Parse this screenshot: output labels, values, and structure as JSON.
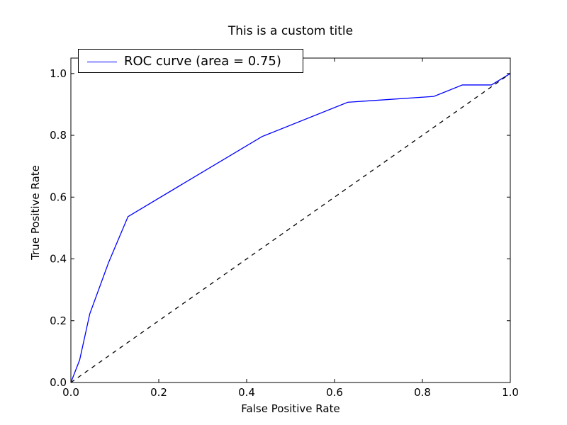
{
  "chart_data": {
    "type": "line",
    "title": "This is a custom title",
    "xlabel": "False Positive Rate",
    "ylabel": "True Positive Rate",
    "xlim": [
      0.0,
      1.0
    ],
    "ylim": [
      0.0,
      1.05
    ],
    "xticks": [
      "0.0",
      "0.2",
      "0.4",
      "0.6",
      "0.8",
      "1.0"
    ],
    "yticks": [
      "0.0",
      "0.2",
      "0.4",
      "0.6",
      "0.8",
      "1.0"
    ],
    "grid": false,
    "legend_position": "top-left",
    "series": [
      {
        "name": "ROC curve (area = 0.75)",
        "color": "#0000ff",
        "style": "solid",
        "x": [
          0.0,
          0.02,
          0.043,
          0.086,
          0.13,
          0.435,
          0.63,
          0.826,
          0.891,
          0.957,
          1.0
        ],
        "y": [
          0.0,
          0.073,
          0.222,
          0.389,
          0.537,
          0.796,
          0.907,
          0.926,
          0.963,
          0.963,
          1.0
        ]
      },
      {
        "name": "",
        "color": "#000000",
        "style": "dashed",
        "x": [
          0.0,
          1.0
        ],
        "y": [
          0.0,
          1.0
        ]
      }
    ]
  }
}
